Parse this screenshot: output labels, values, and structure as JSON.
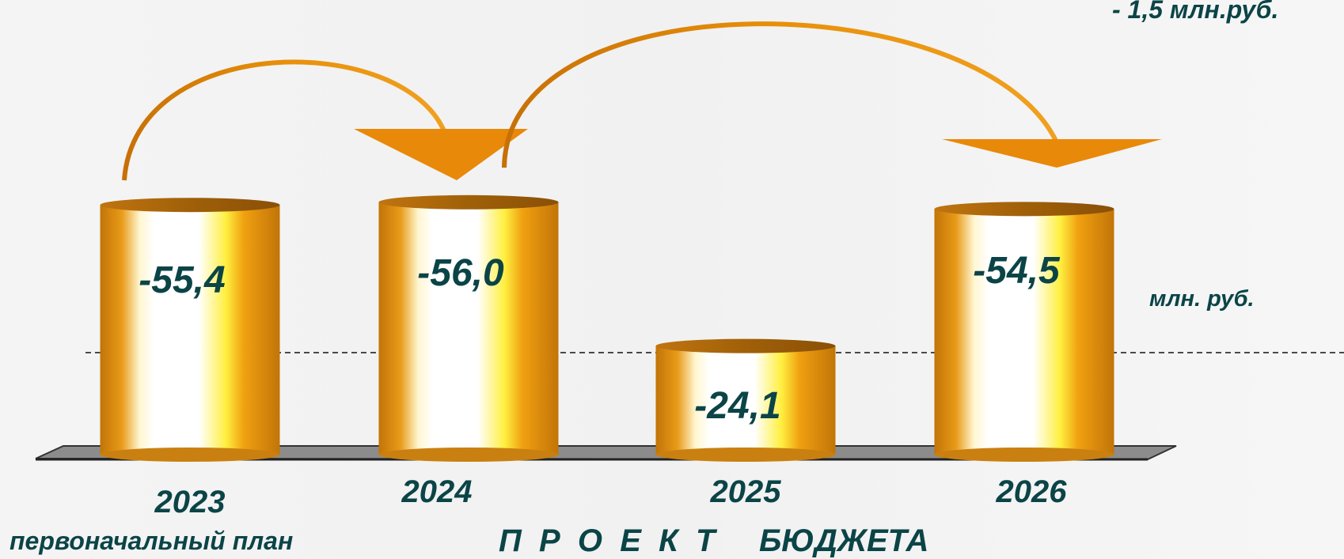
{
  "chart_data": {
    "type": "bar",
    "categories": [
      "2023",
      "2024",
      "2025",
      "2026"
    ],
    "values": [
      -55.4,
      -56.0,
      -24.1,
      -54.5
    ],
    "value_labels": [
      "-55,4",
      "-56,0",
      "-24,1",
      "-54,5"
    ],
    "category_sublabels": [
      "первоначальный план",
      "",
      "",
      ""
    ],
    "unit": "млн. руб.",
    "annotation_top_right": "- 1,5  млн.руб.",
    "footer_caption": "П  Р  О  Е  К  Т     БЮДЖЕТА",
    "bar_color": "#e8900a",
    "value_color": "#0b4447",
    "grid": false,
    "legend": "none"
  }
}
